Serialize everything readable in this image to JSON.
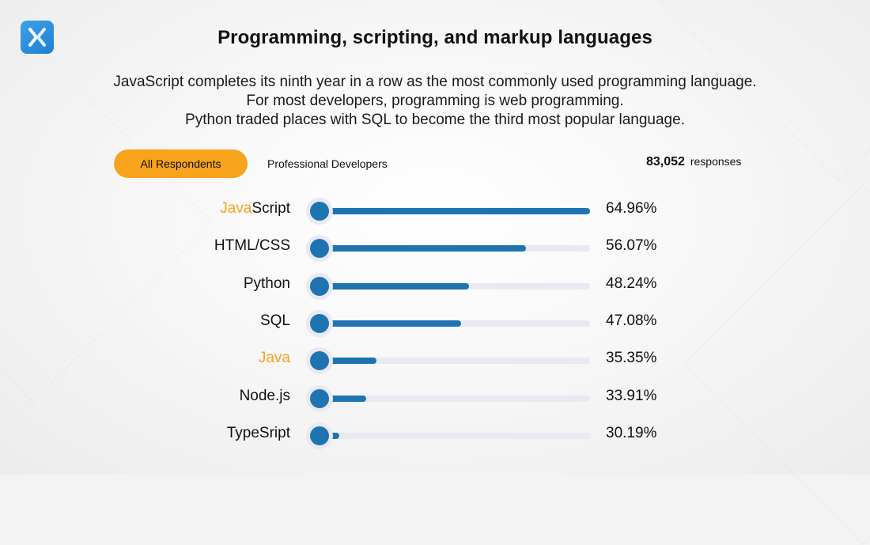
{
  "logo": {
    "icon": "x-logo-icon",
    "color": "#2a8ddb"
  },
  "header": {
    "title": "Programming, scripting, and markup languages",
    "subtitle_lines": [
      "JavaScript completes its ninth year in a row as the most commonly used programming language.",
      "For most developers, programming is web programming.",
      "Python traded places with SQL to become the third most popular language."
    ]
  },
  "filters": {
    "active_tab": "All Respondents",
    "inactive_tab": "Professional Developers",
    "active_color": "#f7a31c"
  },
  "responses": {
    "count": "83,052",
    "label": "responses"
  },
  "colors": {
    "bar": "#1e74b0",
    "track": "#e8e9f1",
    "highlight": "#f7a31c"
  },
  "chart_data": {
    "type": "bar",
    "orientation": "horizontal",
    "categories": [
      "JavaScript",
      "HTML/CSS",
      "Python",
      "SQL",
      "Java",
      "Node.js",
      "TypeSript"
    ],
    "values": [
      64.96,
      56.07,
      48.24,
      47.08,
      35.35,
      33.91,
      30.19
    ],
    "value_labels": [
      "64.96%",
      "56.07%",
      "48.24%",
      "47.08%",
      "35.35%",
      "33.91%",
      "30.19%"
    ],
    "label_highlight": [
      {
        "plain_before": "",
        "highlight": "Java",
        "plain_after": "Script"
      },
      {
        "plain_before": "HTML/CSS",
        "highlight": "",
        "plain_after": ""
      },
      {
        "plain_before": "Python",
        "highlight": "",
        "plain_after": ""
      },
      {
        "plain_before": "SQL",
        "highlight": "",
        "plain_after": ""
      },
      {
        "plain_before": "",
        "highlight": "Java",
        "plain_after": ""
      },
      {
        "plain_before": "Node.js",
        "highlight": "",
        "plain_after": ""
      },
      {
        "plain_before": "TypeSript",
        "highlight": "",
        "plain_after": ""
      }
    ],
    "unit": "%",
    "xlim": [
      27.5,
      64.96
    ],
    "grid": false,
    "legend": "none"
  }
}
